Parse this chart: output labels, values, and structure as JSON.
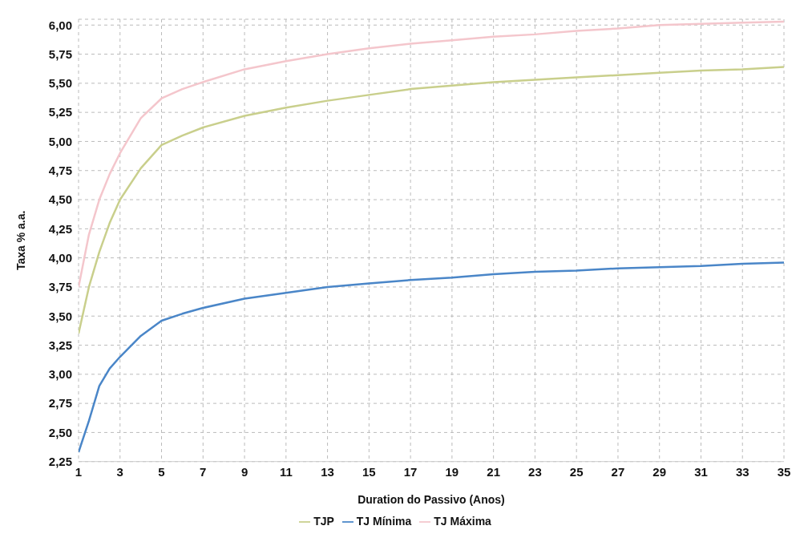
{
  "chart_data": {
    "type": "line",
    "xlabel": "Duration do Passivo (Anos)",
    "ylabel": "Taxa % a.a.",
    "x": [
      1,
      1.5,
      2,
      2.5,
      3,
      4,
      5,
      6,
      7,
      9,
      11,
      13,
      15,
      17,
      19,
      21,
      23,
      25,
      27,
      29,
      31,
      33,
      35
    ],
    "series": [
      {
        "name": "TJP",
        "color": "#c9cf8c",
        "values": [
          3.35,
          3.75,
          4.05,
          4.3,
          4.5,
          4.77,
          4.97,
          5.05,
          5.12,
          5.22,
          5.29,
          5.35,
          5.4,
          5.45,
          5.48,
          5.51,
          5.53,
          5.55,
          5.57,
          5.59,
          5.61,
          5.62,
          5.64
        ]
      },
      {
        "name": "TJ Mínima",
        "color": "#4a86c8",
        "values": [
          2.33,
          2.6,
          2.9,
          3.05,
          3.15,
          3.33,
          3.46,
          3.52,
          3.57,
          3.65,
          3.7,
          3.75,
          3.78,
          3.81,
          3.83,
          3.86,
          3.88,
          3.89,
          3.91,
          3.92,
          3.93,
          3.95,
          3.96
        ]
      },
      {
        "name": "TJ Máxima",
        "color": "#f4c6cc",
        "values": [
          3.75,
          4.2,
          4.5,
          4.72,
          4.9,
          5.2,
          5.37,
          5.45,
          5.51,
          5.62,
          5.69,
          5.75,
          5.8,
          5.84,
          5.87,
          5.9,
          5.92,
          5.95,
          5.97,
          6.0,
          6.01,
          6.02,
          6.03
        ]
      }
    ],
    "xlim": [
      1,
      35
    ],
    "xticks": [
      1,
      3,
      5,
      7,
      9,
      11,
      13,
      15,
      17,
      19,
      21,
      23,
      25,
      27,
      29,
      31,
      33,
      35
    ],
    "ylim": [
      2.25,
      6.05
    ],
    "yticks": [
      {
        "value": 2.25,
        "label": "2,25"
      },
      {
        "value": 2.5,
        "label": "2,50"
      },
      {
        "value": 2.75,
        "label": "2,75"
      },
      {
        "value": 3,
        "label": "3,00"
      },
      {
        "value": 3.25,
        "label": "3,25"
      },
      {
        "value": 3.5,
        "label": "3,50"
      },
      {
        "value": 3.75,
        "label": "3,75"
      },
      {
        "value": 4,
        "label": "4,00"
      },
      {
        "value": 4.25,
        "label": "4,25"
      },
      {
        "value": 4.5,
        "label": "4,50"
      },
      {
        "value": 4.75,
        "label": "4,75"
      },
      {
        "value": 5,
        "label": "5,00"
      },
      {
        "value": 5.25,
        "label": "5,25"
      },
      {
        "value": 5.5,
        "label": "5,50"
      },
      {
        "value": 5.75,
        "label": "5,75"
      },
      {
        "value": 6,
        "label": "6,00"
      }
    ],
    "grid": true,
    "legend": "bottom",
    "marker": "none",
    "line_style": "solid"
  }
}
